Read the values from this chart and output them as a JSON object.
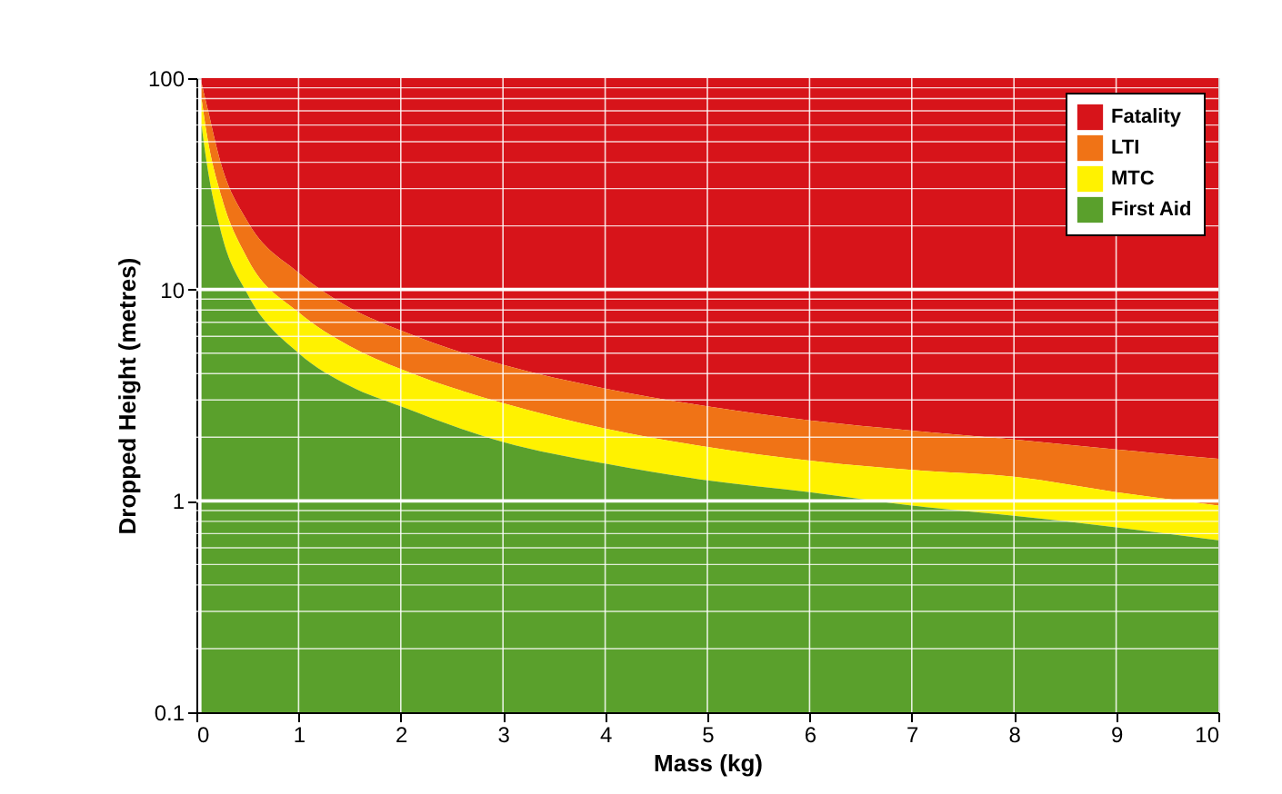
{
  "chart_data": {
    "type": "area",
    "xlabel": "Mass (kg)",
    "ylabel": "Dropped Height (metres)",
    "x": [
      0.05,
      0.1,
      0.25,
      0.5,
      1,
      1.5,
      2,
      3,
      4,
      5,
      6,
      7,
      8,
      9,
      10
    ],
    "series": [
      {
        "name": "Fatality",
        "color": "#d7141a",
        "values": [
          100,
          100,
          100,
          100,
          100,
          100,
          100,
          100,
          100,
          100,
          100,
          100,
          100,
          100,
          100
        ]
      },
      {
        "name": "LTI",
        "color": "#f07316",
        "values": [
          95,
          75,
          38,
          21,
          12,
          8.2,
          6.4,
          4.4,
          3.4,
          2.8,
          2.4,
          2.15,
          1.95,
          1.75,
          1.58
        ]
      },
      {
        "name": "MTC",
        "color": "#fff200",
        "values": [
          80,
          55,
          27,
          14,
          7.8,
          5.4,
          4.2,
          2.9,
          2.2,
          1.8,
          1.55,
          1.4,
          1.3,
          1.1,
          0.95
        ]
      },
      {
        "name": "First Aid",
        "color": "#5aa02c",
        "values": [
          60,
          40,
          18,
          9.5,
          5,
          3.5,
          2.8,
          1.9,
          1.5,
          1.25,
          1.1,
          0.95,
          0.85,
          0.75,
          0.65
        ]
      }
    ],
    "xlim": [
      0,
      10
    ],
    "xticks": [
      0,
      1,
      2,
      3,
      4,
      5,
      6,
      7,
      8,
      9,
      10
    ],
    "ylim": [
      0.1,
      100
    ],
    "yticks": [
      0.1,
      1,
      10,
      100
    ],
    "log": true,
    "grid": true,
    "legend": "top right"
  }
}
